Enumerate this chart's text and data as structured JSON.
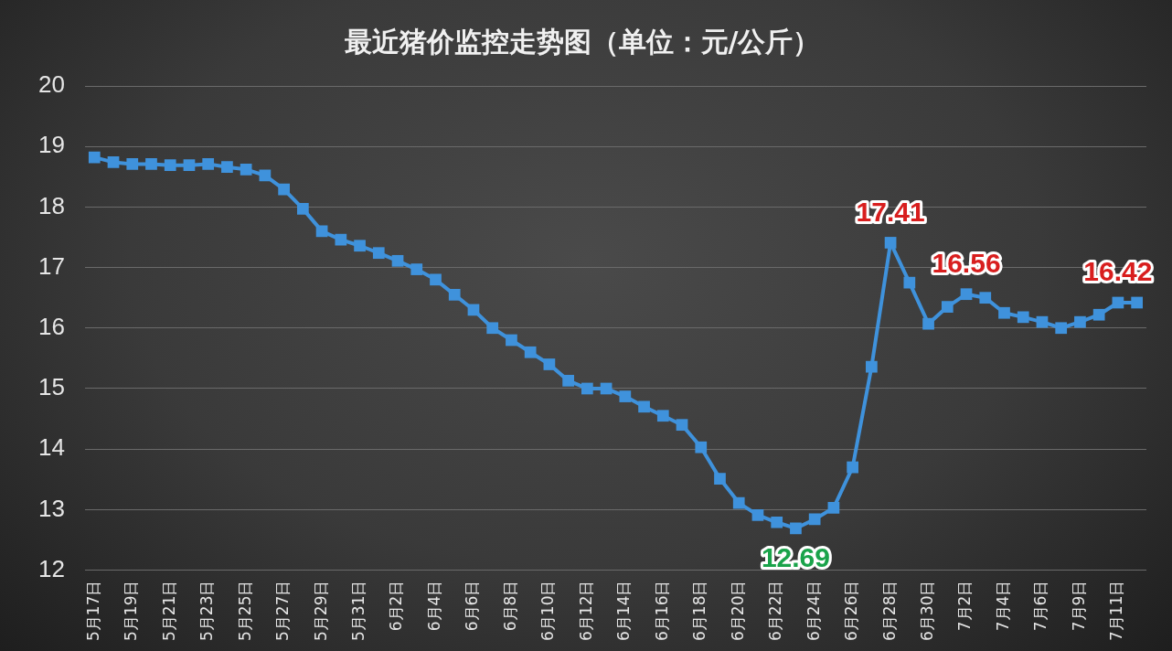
{
  "chart_data": {
    "type": "line",
    "title": "最近猪价监控走势图（单位：元/公斤）",
    "categories": [
      "5月17日",
      null,
      "5月19日",
      null,
      "5月21日",
      null,
      "5月23日",
      null,
      "5月25日",
      null,
      "5月27日",
      null,
      "5月29日",
      null,
      "5月31日",
      null,
      "6月2日",
      null,
      "6月4日",
      null,
      "6月6日",
      null,
      "6月8日",
      null,
      "6月10日",
      null,
      "6月12日",
      null,
      "6月14日",
      null,
      "6月16日",
      null,
      "6月18日",
      null,
      "6月20日",
      null,
      "6月22日",
      null,
      "6月24日",
      null,
      "6月26日",
      null,
      "6月28日",
      null,
      "6月30日",
      null,
      "7月2日",
      null,
      "7月4日",
      null,
      "7月6日",
      null,
      "7月9日",
      null,
      "7月11日",
      null
    ],
    "series": [
      {
        "color": "#3f92dc",
        "values": [
          18.82,
          18.74,
          18.71,
          18.71,
          18.69,
          18.69,
          18.71,
          18.66,
          18.62,
          18.52,
          18.29,
          17.97,
          17.6,
          17.46,
          17.36,
          17.24,
          17.11,
          16.97,
          16.8,
          16.55,
          16.3,
          16.0,
          15.8,
          15.6,
          15.4,
          15.13,
          15.0,
          15.0,
          14.87,
          14.7,
          14.55,
          14.4,
          14.03,
          13.51,
          13.11,
          12.91,
          12.79,
          12.69,
          12.84,
          13.03,
          13.7,
          15.36,
          17.41,
          16.75,
          16.07,
          16.35,
          16.56,
          16.5,
          16.25,
          16.18,
          16.1,
          16.0,
          16.1,
          16.22,
          16.42,
          16.42
        ],
        "value_labels": [
          null,
          null,
          null,
          null,
          null,
          null,
          null,
          null,
          null,
          null,
          null,
          null,
          null,
          null,
          null,
          null,
          null,
          null,
          null,
          null,
          null,
          null,
          null,
          null,
          null,
          null,
          null,
          null,
          null,
          null,
          null,
          null,
          null,
          null,
          null,
          null,
          null,
          "12.69",
          null,
          null,
          null,
          null,
          "17.41",
          null,
          null,
          null,
          "16.56",
          null,
          null,
          null,
          null,
          null,
          null,
          null,
          "16.42",
          null
        ]
      }
    ],
    "ylim": [
      12,
      20
    ],
    "yticks": [
      12,
      13,
      14,
      15,
      16,
      17,
      18,
      19,
      20
    ],
    "grid": "y",
    "legend": false,
    "marker": "square",
    "line_style": "solid"
  }
}
